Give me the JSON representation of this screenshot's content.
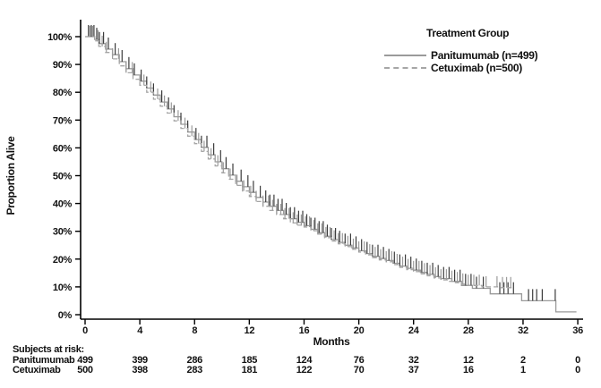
{
  "figure": {
    "y_axis_label": "Proportion Alive",
    "x_axis_label": "Months",
    "legend": {
      "title": "Treatment Group",
      "entries": [
        {
          "label": "Panitumumab (n=499)",
          "line_style": "solid"
        },
        {
          "label": "Cetuximab (n=500)",
          "line_style": "dashed"
        }
      ]
    },
    "risk_table": {
      "title": "Subjects at risk:",
      "rows": [
        {
          "label": "Panitumumab",
          "counts": [
            "499",
            "399",
            "286",
            "185",
            "124",
            "76",
            "32",
            "12",
            "2",
            "0"
          ]
        },
        {
          "label": "Cetuximab",
          "counts": [
            "500",
            "398",
            "283",
            "181",
            "122",
            "70",
            "37",
            "16",
            "1",
            "0"
          ]
        }
      ]
    },
    "colors": {
      "axis": "#000000",
      "text": "#111111",
      "panitumumab_line": "#9a9a9a",
      "cetuximab_line": "#a6a6a6",
      "panitumumab_censor": "#3c3c3c",
      "cetuximab_censor": "#9b9b9b"
    }
  },
  "chart_data": {
    "type": "line",
    "subtype": "kaplan_meier_step",
    "title": "",
    "xlabel": "Months",
    "ylabel": "Proportion Alive",
    "xlim": [
      0,
      36
    ],
    "ylim": [
      0,
      100
    ],
    "x_ticks": [
      0,
      4,
      8,
      12,
      16,
      20,
      24,
      28,
      32,
      36
    ],
    "y_ticks": [
      0,
      10,
      20,
      30,
      40,
      50,
      60,
      70,
      80,
      90,
      100
    ],
    "y_tick_suffix": "%",
    "grid": false,
    "legend_position": "top-right",
    "series": [
      {
        "name": "Panitumumab (n=499)",
        "style": "solid",
        "points": [
          [
            0,
            100
          ],
          [
            0.7,
            99
          ],
          [
            1,
            97.5
          ],
          [
            1.5,
            95.5
          ],
          [
            2,
            93.5
          ],
          [
            2.5,
            91
          ],
          [
            3,
            88.5
          ],
          [
            3.5,
            86.2
          ],
          [
            4,
            84
          ],
          [
            4.5,
            81.5
          ],
          [
            5,
            79
          ],
          [
            5.5,
            76.5
          ],
          [
            6,
            74
          ],
          [
            6.5,
            71.2
          ],
          [
            7,
            68.5
          ],
          [
            7.5,
            65.7
          ],
          [
            8,
            63
          ],
          [
            8.5,
            60.2
          ],
          [
            9,
            57.5
          ],
          [
            9.5,
            55
          ],
          [
            10,
            52.5
          ],
          [
            10.5,
            50.2
          ],
          [
            11,
            48
          ],
          [
            11.5,
            46
          ],
          [
            12,
            44
          ],
          [
            12.5,
            42.2
          ],
          [
            13,
            40.5
          ],
          [
            13.5,
            39
          ],
          [
            14,
            37.5
          ],
          [
            14.5,
            36
          ],
          [
            15,
            34.5
          ],
          [
            15.5,
            33.2
          ],
          [
            16,
            32
          ],
          [
            16.5,
            30.7
          ],
          [
            17,
            29.5
          ],
          [
            17.5,
            28.2
          ],
          [
            18,
            27
          ],
          [
            18.5,
            26
          ],
          [
            19,
            25
          ],
          [
            19.5,
            24
          ],
          [
            20,
            23
          ],
          [
            20.5,
            22
          ],
          [
            21,
            21
          ],
          [
            21.5,
            20.2
          ],
          [
            22,
            19.5
          ],
          [
            22.5,
            18.5
          ],
          [
            23,
            17.5
          ],
          [
            23.5,
            16.7
          ],
          [
            24,
            16
          ],
          [
            24.5,
            15.2
          ],
          [
            25,
            14.5
          ],
          [
            25.5,
            13.7
          ],
          [
            26,
            13
          ],
          [
            26.8,
            12
          ],
          [
            27.5,
            10.5
          ],
          [
            28.3,
            9.5
          ],
          [
            29.6,
            7.5
          ],
          [
            31.9,
            5
          ],
          [
            34.4,
            1
          ],
          [
            35.9,
            1
          ]
        ],
        "censor_times": [
          0.25,
          0.45,
          0.65,
          0.85,
          1.05,
          1.35,
          1.7,
          2.2,
          2.7,
          3.2,
          3.6,
          4.1,
          4.5,
          5.0,
          5.6,
          6.1,
          6.5,
          7.0,
          7.5,
          8.1,
          8.5,
          8.9,
          9.4,
          9.9,
          10.3,
          10.8,
          11.4,
          11.9,
          12.3,
          12.8,
          13.2,
          13.5,
          13.8,
          14.1,
          14.4,
          14.7,
          15.0,
          15.3,
          15.6,
          15.9,
          16.2,
          16.5,
          16.8,
          17.1,
          17.4,
          17.7,
          18.0,
          18.3,
          18.6,
          19.0,
          19.4,
          19.8,
          20.2,
          20.6,
          21.0,
          21.4,
          21.8,
          22.2,
          22.6,
          23.0,
          23.4,
          23.8,
          24.2,
          24.6,
          25.0,
          25.4,
          25.8,
          26.2,
          26.6,
          27.0,
          27.4,
          27.8,
          28.2,
          28.6,
          29.1,
          30.3,
          30.6,
          30.9,
          31.3,
          32.4,
          32.7,
          33.0,
          33.4,
          34.35
        ]
      },
      {
        "name": "Cetuximab (n=500)",
        "style": "dashed",
        "points": [
          [
            0,
            100
          ],
          [
            0.7,
            98.5
          ],
          [
            1,
            96.5
          ],
          [
            1.5,
            94.3
          ],
          [
            2,
            92
          ],
          [
            2.5,
            89.5
          ],
          [
            3,
            87
          ],
          [
            3.5,
            84.7
          ],
          [
            4,
            82.5
          ],
          [
            4.5,
            80
          ],
          [
            5,
            77.5
          ],
          [
            5.5,
            75
          ],
          [
            6,
            72.5
          ],
          [
            6.5,
            69.7
          ],
          [
            7,
            67
          ],
          [
            7.5,
            64.2
          ],
          [
            8,
            61.5
          ],
          [
            8.5,
            58.7
          ],
          [
            9,
            56
          ],
          [
            9.5,
            53.5
          ],
          [
            10,
            51
          ],
          [
            10.5,
            48.7
          ],
          [
            11,
            46.5
          ],
          [
            11.5,
            44.5
          ],
          [
            12,
            42.5
          ],
          [
            12.5,
            40.7
          ],
          [
            13,
            39
          ],
          [
            13.5,
            37.5
          ],
          [
            14,
            36
          ],
          [
            14.5,
            34.5
          ],
          [
            15,
            33
          ],
          [
            15.5,
            32.2
          ],
          [
            16,
            31.5
          ],
          [
            16.5,
            30.2
          ],
          [
            17,
            29
          ],
          [
            17.5,
            27.7
          ],
          [
            18,
            26.5
          ],
          [
            18.5,
            25.5
          ],
          [
            19,
            24.5
          ],
          [
            19.5,
            23.5
          ],
          [
            20,
            22.5
          ],
          [
            20.5,
            21.5
          ],
          [
            21,
            20.5
          ],
          [
            21.5,
            19.7
          ],
          [
            22,
            19
          ],
          [
            22.5,
            18
          ],
          [
            23,
            17
          ],
          [
            23.5,
            16.2
          ],
          [
            24,
            15.5
          ],
          [
            24.5,
            14.7
          ],
          [
            25,
            14
          ],
          [
            25.5,
            13.2
          ],
          [
            26,
            12.5
          ],
          [
            26.5,
            12
          ],
          [
            27,
            11.5
          ],
          [
            27.5,
            11
          ],
          [
            28,
            10.5
          ],
          [
            29,
            10
          ],
          [
            30.2,
            9.7
          ],
          [
            31.3,
            9.7
          ]
        ],
        "censor_times": [
          0.35,
          0.55,
          0.95,
          1.25,
          1.55,
          2.0,
          2.45,
          3.0,
          3.45,
          4.3,
          4.8,
          5.3,
          5.8,
          6.3,
          6.8,
          7.3,
          7.8,
          8.3,
          8.7,
          9.2,
          9.7,
          10.1,
          10.6,
          11.1,
          11.6,
          12.1,
          12.5,
          13.0,
          13.4,
          13.7,
          14.0,
          14.3,
          14.6,
          14.9,
          15.2,
          15.5,
          15.8,
          16.1,
          16.4,
          16.7,
          17.0,
          17.3,
          17.6,
          17.9,
          18.2,
          18.5,
          18.8,
          19.2,
          19.6,
          20.0,
          20.4,
          20.8,
          21.2,
          21.6,
          22.0,
          22.4,
          22.8,
          23.2,
          23.6,
          24.0,
          24.4,
          24.8,
          25.2,
          25.6,
          26.0,
          26.4,
          26.8,
          27.2,
          27.6,
          28.0,
          28.4,
          28.8,
          29.3,
          30.1,
          30.5,
          30.8,
          31.1
        ]
      }
    ],
    "risk_table": {
      "title": "Subjects at risk:",
      "times": [
        0,
        4,
        8,
        12,
        16,
        20,
        24,
        28,
        32,
        36
      ],
      "rows": [
        {
          "label": "Panitumumab",
          "counts": [
            499,
            399,
            286,
            185,
            124,
            76,
            32,
            12,
            2,
            0
          ]
        },
        {
          "label": "Cetuximab",
          "counts": [
            500,
            398,
            283,
            181,
            122,
            70,
            37,
            16,
            1,
            0
          ]
        }
      ]
    }
  }
}
